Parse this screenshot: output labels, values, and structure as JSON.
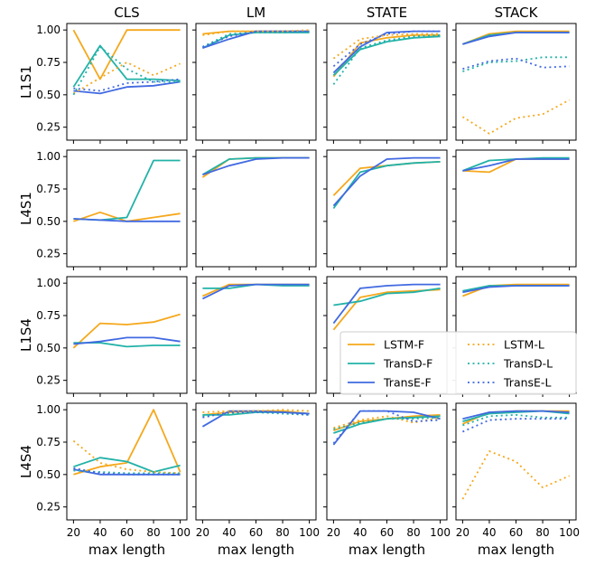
{
  "chart_data": {
    "type": "line",
    "columns": [
      "CLS",
      "LM",
      "STATE",
      "STACK"
    ],
    "rows": [
      "L1S1",
      "L4S1",
      "L1S4",
      "L4S4"
    ],
    "x": [
      20,
      40,
      60,
      80,
      100
    ],
    "x_ticks": [
      "20",
      "40",
      "60",
      "80",
      "100"
    ],
    "xlabel": "max length",
    "ylim": [
      0.15,
      1.05
    ],
    "y_ticks": [
      "0.25",
      "0.50",
      "0.75",
      "1.00"
    ],
    "series_styles": [
      {
        "name": "LSTM-F",
        "color": "#f5a81c",
        "dash": "solid"
      },
      {
        "name": "TransD-F",
        "color": "#22b2a8",
        "dash": "solid"
      },
      {
        "name": "TransE-F",
        "color": "#4169e1",
        "dash": "solid"
      },
      {
        "name": "LSTM-L",
        "color": "#f5a81c",
        "dash": "dotted"
      },
      {
        "name": "TransD-L",
        "color": "#22b2a8",
        "dash": "dotted"
      },
      {
        "name": "TransE-L",
        "color": "#4169e1",
        "dash": "dotted"
      }
    ],
    "legend": {
      "panel": "L1S4-STACK",
      "placement": "center",
      "ncol": 2
    },
    "panels": {
      "L1S1": {
        "CLS": {
          "LSTM-F": [
            1.0,
            0.62,
            1.0,
            1.0,
            1.0
          ],
          "TransD-F": [
            0.56,
            0.88,
            0.62,
            0.62,
            0.61
          ],
          "TransE-F": [
            0.53,
            0.51,
            0.56,
            0.57,
            0.6
          ],
          "LSTM-L": [
            0.51,
            0.63,
            0.75,
            0.65,
            0.74
          ],
          "TransD-L": [
            0.5,
            0.87,
            0.7,
            0.6,
            0.6
          ],
          "TransE-L": [
            0.55,
            0.53,
            0.59,
            0.6,
            0.62
          ]
        },
        "LM": {
          "LSTM-F": [
            0.97,
            0.99,
            0.99,
            0.99,
            0.99
          ],
          "TransD-F": [
            0.86,
            0.96,
            0.98,
            0.98,
            0.98
          ],
          "TransE-F": [
            0.86,
            0.93,
            0.99,
            0.99,
            0.99
          ],
          "LSTM-L": [
            0.96,
            0.99,
            0.99,
            0.99,
            1.0
          ],
          "TransD-L": [
            0.87,
            0.97,
            0.98,
            0.98,
            0.99
          ],
          "TransE-L": [
            0.87,
            0.95,
            0.99,
            0.99,
            0.99
          ]
        },
        "STATE": {
          "LSTM-F": [
            0.64,
            0.9,
            0.94,
            0.96,
            0.96
          ],
          "TransD-F": [
            0.65,
            0.85,
            0.91,
            0.94,
            0.95
          ],
          "TransE-F": [
            0.67,
            0.87,
            0.98,
            0.99,
            0.99
          ],
          "LSTM-L": [
            0.78,
            0.93,
            0.96,
            0.97,
            0.97
          ],
          "TransD-L": [
            0.58,
            0.86,
            0.92,
            0.95,
            0.96
          ],
          "TransE-L": [
            0.72,
            0.89,
            0.97,
            0.99,
            0.99
          ]
        },
        "STACK": {
          "LSTM-F": [
            0.89,
            0.97,
            0.99,
            0.99,
            0.99
          ],
          "TransD-F": [
            0.89,
            0.96,
            0.98,
            0.98,
            0.98
          ],
          "TransE-F": [
            0.89,
            0.95,
            0.98,
            0.98,
            0.98
          ],
          "LSTM-L": [
            0.33,
            0.2,
            0.32,
            0.35,
            0.46
          ],
          "TransD-L": [
            0.68,
            0.75,
            0.76,
            0.79,
            0.79
          ],
          "TransE-L": [
            0.7,
            0.76,
            0.78,
            0.71,
            0.72
          ]
        }
      },
      "L4S1": {
        "CLS": {
          "LSTM-F": [
            0.5,
            0.57,
            0.5,
            0.53,
            0.56
          ],
          "TransD-F": [
            0.52,
            0.51,
            0.53,
            0.97,
            0.97
          ],
          "TransE-F": [
            0.52,
            0.51,
            0.5,
            0.5,
            0.5
          ]
        },
        "LM": {
          "LSTM-F": [
            0.84,
            0.98,
            0.99,
            0.99,
            0.99
          ],
          "TransD-F": [
            0.86,
            0.98,
            0.99,
            0.99,
            0.99
          ],
          "TransE-F": [
            0.86,
            0.93,
            0.98,
            0.99,
            0.99
          ]
        },
        "STATE": {
          "LSTM-F": [
            0.7,
            0.91,
            0.93,
            0.95,
            0.96
          ],
          "TransD-F": [
            0.6,
            0.88,
            0.93,
            0.95,
            0.96
          ],
          "TransE-F": [
            0.62,
            0.85,
            0.98,
            0.99,
            0.99
          ]
        },
        "STACK": {
          "LSTM-F": [
            0.89,
            0.88,
            0.98,
            0.98,
            0.98
          ],
          "TransD-F": [
            0.89,
            0.97,
            0.98,
            0.99,
            0.99
          ],
          "TransE-F": [
            0.89,
            0.93,
            0.98,
            0.98,
            0.98
          ]
        }
      },
      "L1S4": {
        "CLS": {
          "LSTM-F": [
            0.5,
            0.69,
            0.68,
            0.7,
            0.76
          ],
          "TransD-F": [
            0.54,
            0.54,
            0.51,
            0.52,
            0.52
          ],
          "TransE-F": [
            0.53,
            0.55,
            0.58,
            0.58,
            0.55
          ]
        },
        "LM": {
          "LSTM-F": [
            0.9,
            0.99,
            0.99,
            0.99,
            0.99
          ],
          "TransD-F": [
            0.96,
            0.96,
            0.99,
            0.98,
            0.98
          ],
          "TransE-F": [
            0.88,
            0.98,
            0.99,
            0.99,
            0.99
          ]
        },
        "STATE": {
          "LSTM-F": [
            0.64,
            0.89,
            0.93,
            0.94,
            0.95
          ],
          "TransD-F": [
            0.83,
            0.86,
            0.92,
            0.93,
            0.96
          ],
          "TransE-F": [
            0.69,
            0.96,
            0.98,
            0.99,
            0.99
          ]
        },
        "STACK": {
          "LSTM-F": [
            0.9,
            0.98,
            0.99,
            0.99,
            0.99
          ],
          "TransD-F": [
            0.94,
            0.98,
            0.98,
            0.98,
            0.98
          ],
          "TransE-F": [
            0.93,
            0.97,
            0.98,
            0.98,
            0.98
          ]
        }
      },
      "L4S4": {
        "CLS": {
          "LSTM-F": [
            0.5,
            0.56,
            0.59,
            1.0,
            0.52
          ],
          "TransD-F": [
            0.56,
            0.63,
            0.6,
            0.52,
            0.57
          ],
          "TransE-F": [
            0.54,
            0.5,
            0.5,
            0.5,
            0.5
          ],
          "LSTM-L": [
            0.76,
            0.59,
            0.54,
            0.52,
            0.51
          ],
          "TransD-L": [
            0.53,
            0.52,
            0.51,
            0.51,
            0.51
          ],
          "TransE-L": [
            0.55,
            0.51,
            0.5,
            0.5,
            0.5
          ]
        },
        "LM": {
          "LSTM-F": [
            0.96,
            0.98,
            0.99,
            0.99,
            0.97
          ],
          "TransD-F": [
            0.96,
            0.96,
            0.98,
            0.98,
            0.97
          ],
          "TransE-F": [
            0.87,
            0.99,
            0.99,
            0.98,
            0.97
          ],
          "LSTM-L": [
            0.98,
            0.99,
            0.99,
            1.0,
            0.99
          ],
          "TransD-L": [
            0.95,
            0.97,
            0.98,
            0.97,
            0.96
          ],
          "TransE-L": [
            0.94,
            0.98,
            0.98,
            0.98,
            0.96
          ]
        },
        "STATE": {
          "LSTM-F": [
            0.84,
            0.91,
            0.93,
            0.95,
            0.96
          ],
          "TransD-F": [
            0.82,
            0.89,
            0.93,
            0.94,
            0.95
          ],
          "TransE-F": [
            0.73,
            0.99,
            0.99,
            0.98,
            0.93
          ],
          "LSTM-L": [
            0.86,
            0.92,
            0.95,
            0.9,
            0.94
          ],
          "TransD-L": [
            0.85,
            0.9,
            0.93,
            0.93,
            0.94
          ],
          "TransE-L": [
            0.74,
            0.99,
            0.99,
            0.91,
            0.92
          ]
        },
        "STACK": {
          "LSTM-F": [
            0.89,
            0.98,
            0.99,
            0.99,
            0.99
          ],
          "TransD-F": [
            0.91,
            0.97,
            0.98,
            0.99,
            0.97
          ],
          "TransE-F": [
            0.93,
            0.98,
            0.99,
            0.99,
            0.98
          ],
          "LSTM-L": [
            0.31,
            0.68,
            0.6,
            0.4,
            0.49
          ],
          "TransD-L": [
            0.88,
            0.95,
            0.96,
            0.94,
            0.94
          ],
          "TransE-L": [
            0.83,
            0.92,
            0.93,
            0.93,
            0.93
          ]
        }
      }
    }
  }
}
